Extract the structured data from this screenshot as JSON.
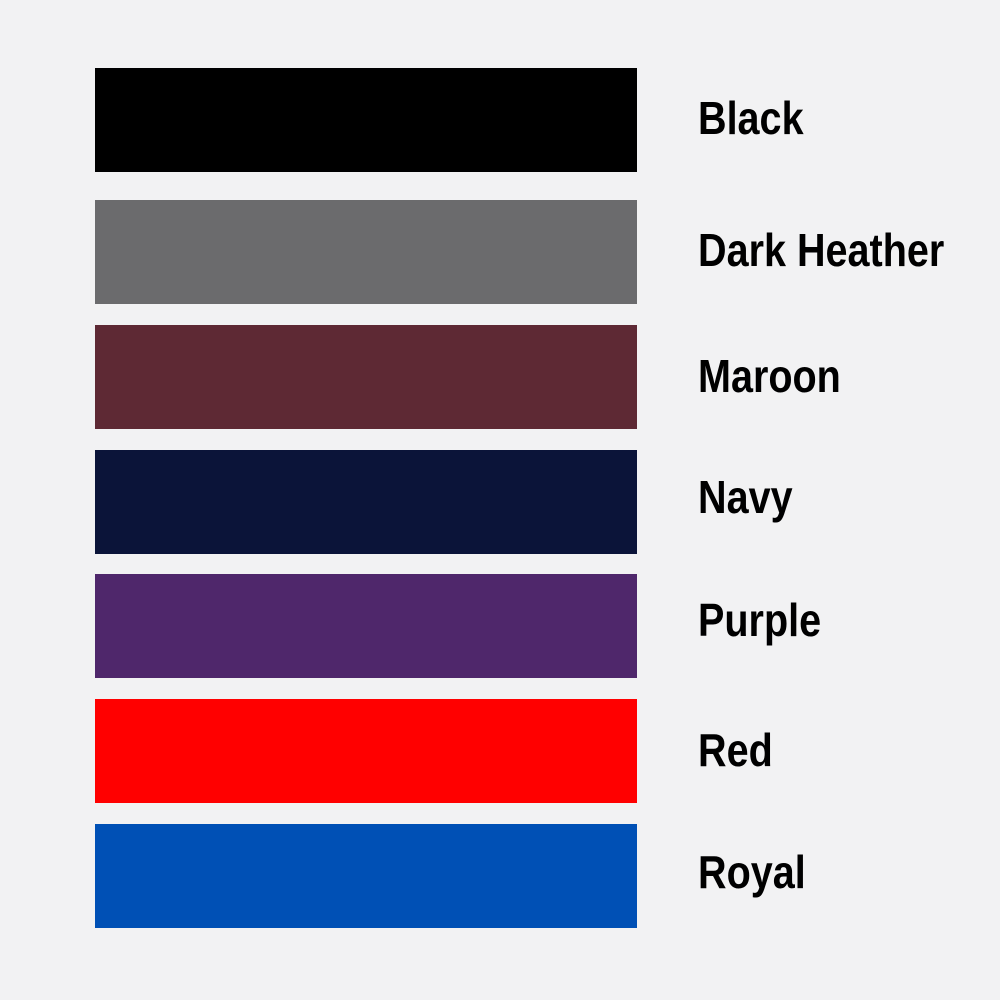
{
  "colors": [
    {
      "name": "Black",
      "hex": "#000000"
    },
    {
      "name": "Dark Heather",
      "hex": "#6b6b6d"
    },
    {
      "name": "Maroon",
      "hex": "#5e2934"
    },
    {
      "name": "Navy",
      "hex": "#0b1439"
    },
    {
      "name": "Purple",
      "hex": "#4f276b"
    },
    {
      "name": "Red",
      "hex": "#ff0000"
    },
    {
      "name": "Royal",
      "hex": "#0050b5"
    }
  ]
}
